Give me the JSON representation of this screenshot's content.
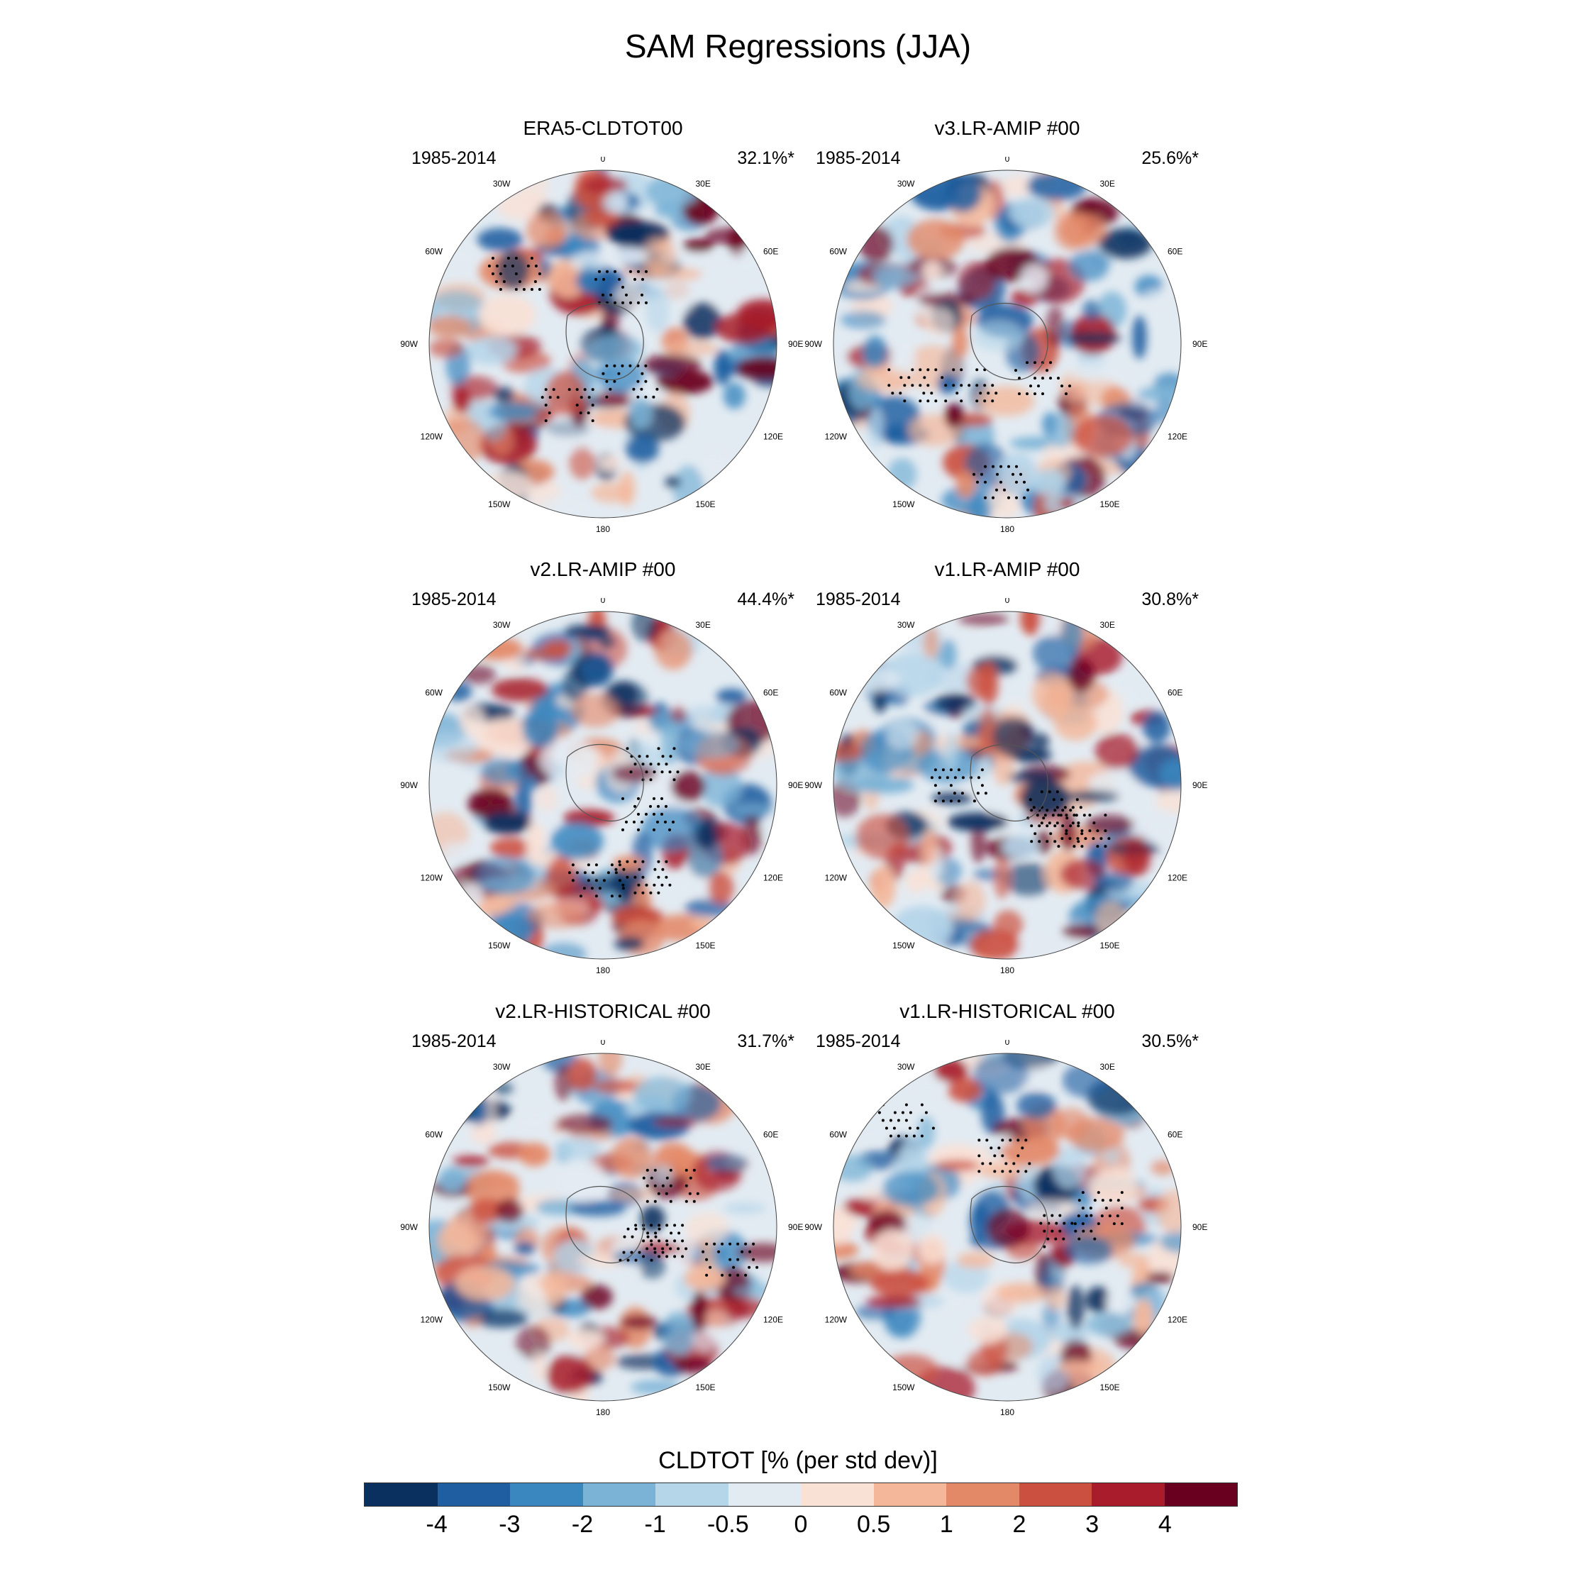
{
  "figure": {
    "title": "SAM Regressions (JJA)"
  },
  "panels": [
    {
      "title": "ERA5-CLDTOT00",
      "period": "1985-2014",
      "pct": "32.1%*"
    },
    {
      "title": "v3.LR-AMIP  #00",
      "period": "1985-2014",
      "pct": "25.6%*"
    },
    {
      "title": "v2.LR-AMIP  #00",
      "period": "1985-2014",
      "pct": "44.4%*"
    },
    {
      "title": "v1.LR-AMIP  #00",
      "period": "1985-2014",
      "pct": "30.8%*"
    },
    {
      "title": "v2.LR-HISTORICAL  #00",
      "period": "1985-2014",
      "pct": "31.7%*"
    },
    {
      "title": "v1.LR-HISTORICAL  #00",
      "period": "1985-2014",
      "pct": "30.5%*"
    }
  ],
  "longitude_labels": [
    "0",
    "30E",
    "60E",
    "90E",
    "120E",
    "150E",
    "180",
    "150W",
    "120W",
    "90W",
    "60W",
    "30W"
  ],
  "colorbar": {
    "title": "CLDTOT [% (per std dev)]",
    "tick_labels": [
      "-4",
      "-3",
      "-2",
      "-1",
      "-0.5",
      "0",
      "0.5",
      "1",
      "2",
      "3",
      "4"
    ],
    "colors": [
      "#0a305f",
      "#1f5fa1",
      "#3a87bf",
      "#7bb3d6",
      "#b5d5e9",
      "#e3ebf2",
      "#f9e1d6",
      "#f4b79a",
      "#e48968",
      "#cc5040",
      "#a81c2b",
      "#6a0020"
    ]
  }
}
